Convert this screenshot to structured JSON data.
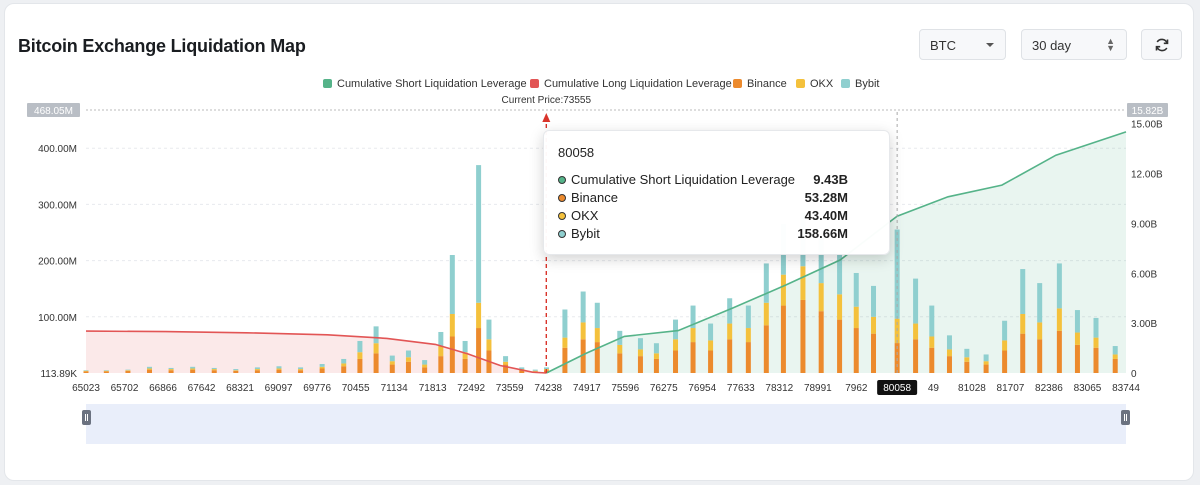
{
  "header": {
    "title": "Bitcoin Exchange Liquidation Map",
    "coin_select": "BTC",
    "range_select": "30 day"
  },
  "colors": {
    "short_cum": "#55b389",
    "long_cum": "#e25555",
    "binance": "#ec8a2d",
    "okx": "#f4c13c",
    "bybit": "#8fcfcf",
    "current_price_line": "#d9342b"
  },
  "tooltip": {
    "header": "80058",
    "rows": [
      {
        "name": "Cumulative Short Liquidation Leverage",
        "value": "9.43B"
      },
      {
        "name": "Binance",
        "value": "53.28M"
      },
      {
        "name": "OKX",
        "value": "43.40M"
      },
      {
        "name": "Bybit",
        "value": "158.66M"
      }
    ]
  },
  "chart_data": {
    "type": "bar",
    "legend": [
      "Cumulative Short Liquidation Leverage",
      "Cumulative Long Liquidation Leverage",
      "Binance",
      "OKX",
      "Bybit"
    ],
    "legend_position": "top-center",
    "current_price_label": "Current Price:73555",
    "current_price": 73555,
    "hover_x_label": "80058",
    "x_tick_labels": [
      "65023",
      "65702",
      "66866",
      "67642",
      "68321",
      "69097",
      "69776",
      "70455",
      "71134",
      "71813",
      "72492",
      "73559",
      "74238",
      "74917",
      "75596",
      "76275",
      "76954",
      "77633",
      "78312",
      "78991",
      "7962",
      "80058",
      "49",
      "81028",
      "81707",
      "82386",
      "83065",
      "83744"
    ],
    "y_left_ticks": [
      "113.89K",
      "100.00M",
      "200.00M",
      "300.00M",
      "400.00M"
    ],
    "y_left_max_label": "468.05M",
    "y_right_ticks": [
      "0",
      "3.00B",
      "6.00B",
      "9.00B",
      "12.00B",
      "15.00B"
    ],
    "y_right_max_label": "15.82B",
    "y_left_unit": "M",
    "y_right_unit": "B",
    "ylim_left": [
      0,
      468.05
    ],
    "ylim_right": [
      0,
      15.82
    ],
    "x_range": [
      65023,
      84300
    ],
    "grid": "horizontal-dashed",
    "long_cumulative_line": [
      {
        "x": 65023,
        "y": 2.52
      },
      {
        "x": 66500,
        "y": 2.49
      },
      {
        "x": 68000,
        "y": 2.42
      },
      {
        "x": 69500,
        "y": 2.3
      },
      {
        "x": 70600,
        "y": 2.08
      },
      {
        "x": 71500,
        "y": 1.72
      },
      {
        "x": 72100,
        "y": 1.15
      },
      {
        "x": 72700,
        "y": 0.45
      },
      {
        "x": 73300,
        "y": 0.05
      },
      {
        "x": 73555,
        "y": 0
      }
    ],
    "short_cumulative_line": [
      {
        "x": 73555,
        "y": 0
      },
      {
        "x": 74300,
        "y": 1.2
      },
      {
        "x": 75000,
        "y": 2.2
      },
      {
        "x": 76000,
        "y": 2.55
      },
      {
        "x": 77000,
        "y": 3.9
      },
      {
        "x": 78000,
        "y": 5.3
      },
      {
        "x": 79000,
        "y": 6.8
      },
      {
        "x": 80058,
        "y": 9.43
      },
      {
        "x": 81000,
        "y": 10.6
      },
      {
        "x": 82000,
        "y": 11.3
      },
      {
        "x": 83000,
        "y": 13.1
      },
      {
        "x": 84300,
        "y": 14.5
      }
    ],
    "stacked_bars": [
      {
        "x": 65023,
        "binance": 3,
        "okx": 1,
        "bybit": 1
      },
      {
        "x": 65400,
        "binance": 3,
        "okx": 1,
        "bybit": 1
      },
      {
        "x": 65800,
        "binance": 4,
        "okx": 1,
        "bybit": 1
      },
      {
        "x": 66200,
        "binance": 6,
        "okx": 2,
        "bybit": 3
      },
      {
        "x": 66600,
        "binance": 5,
        "okx": 2,
        "bybit": 2
      },
      {
        "x": 67000,
        "binance": 6,
        "okx": 2,
        "bybit": 3
      },
      {
        "x": 67400,
        "binance": 5,
        "okx": 2,
        "bybit": 2
      },
      {
        "x": 67800,
        "binance": 4,
        "okx": 1,
        "bybit": 2
      },
      {
        "x": 68200,
        "binance": 5,
        "okx": 2,
        "bybit": 3
      },
      {
        "x": 68600,
        "binance": 6,
        "okx": 2,
        "bybit": 4
      },
      {
        "x": 69000,
        "binance": 5,
        "okx": 2,
        "bybit": 3
      },
      {
        "x": 69400,
        "binance": 8,
        "okx": 3,
        "bybit": 5
      },
      {
        "x": 69800,
        "binance": 12,
        "okx": 5,
        "bybit": 8
      },
      {
        "x": 70100,
        "binance": 25,
        "okx": 12,
        "bybit": 20
      },
      {
        "x": 70400,
        "binance": 35,
        "okx": 18,
        "bybit": 30
      },
      {
        "x": 70700,
        "binance": 15,
        "okx": 6,
        "bybit": 10
      },
      {
        "x": 71000,
        "binance": 20,
        "okx": 8,
        "bybit": 12
      },
      {
        "x": 71300,
        "binance": 10,
        "okx": 5,
        "bybit": 8
      },
      {
        "x": 71600,
        "binance": 30,
        "okx": 18,
        "bybit": 25
      },
      {
        "x": 71813,
        "binance": 65,
        "okx": 40,
        "bybit": 105
      },
      {
        "x": 72050,
        "binance": 25,
        "okx": 12,
        "bybit": 20
      },
      {
        "x": 72300,
        "binance": 80,
        "okx": 45,
        "bybit": 245
      },
      {
        "x": 72492,
        "binance": 40,
        "okx": 20,
        "bybit": 35
      },
      {
        "x": 72800,
        "binance": 15,
        "okx": 5,
        "bybit": 10
      },
      {
        "x": 73100,
        "binance": 5,
        "okx": 2,
        "bybit": 3
      },
      {
        "x": 73350,
        "binance": 3,
        "okx": 1,
        "bybit": 2
      },
      {
        "x": 73559,
        "binance": 5,
        "okx": 2,
        "bybit": 3
      },
      {
        "x": 73900,
        "binance": 45,
        "okx": 18,
        "bybit": 50
      },
      {
        "x": 74238,
        "binance": 60,
        "okx": 30,
        "bybit": 55
      },
      {
        "x": 74500,
        "binance": 55,
        "okx": 25,
        "bybit": 45
      },
      {
        "x": 74917,
        "binance": 35,
        "okx": 15,
        "bybit": 25
      },
      {
        "x": 75300,
        "binance": 30,
        "okx": 12,
        "bybit": 20
      },
      {
        "x": 75596,
        "binance": 25,
        "okx": 10,
        "bybit": 18
      },
      {
        "x": 75950,
        "binance": 40,
        "okx": 20,
        "bybit": 35
      },
      {
        "x": 76275,
        "binance": 55,
        "okx": 25,
        "bybit": 40
      },
      {
        "x": 76600,
        "binance": 40,
        "okx": 18,
        "bybit": 30
      },
      {
        "x": 76954,
        "binance": 60,
        "okx": 28,
        "bybit": 45
      },
      {
        "x": 77300,
        "binance": 55,
        "okx": 25,
        "bybit": 40
      },
      {
        "x": 77633,
        "binance": 85,
        "okx": 40,
        "bybit": 70
      },
      {
        "x": 77950,
        "binance": 120,
        "okx": 55,
        "bybit": 90
      },
      {
        "x": 78312,
        "binance": 130,
        "okx": 60,
        "bybit": 95
      },
      {
        "x": 78650,
        "binance": 110,
        "okx": 50,
        "bybit": 80
      },
      {
        "x": 78991,
        "binance": 95,
        "okx": 45,
        "bybit": 70
      },
      {
        "x": 79300,
        "binance": 80,
        "okx": 38,
        "bybit": 60
      },
      {
        "x": 79620,
        "binance": 70,
        "okx": 30,
        "bybit": 55
      },
      {
        "x": 80058,
        "binance": 53.28,
        "okx": 43.4,
        "bybit": 158.66
      },
      {
        "x": 80400,
        "binance": 60,
        "okx": 28,
        "bybit": 80
      },
      {
        "x": 80700,
        "binance": 45,
        "okx": 20,
        "bybit": 55
      },
      {
        "x": 81028,
        "binance": 30,
        "okx": 12,
        "bybit": 25
      },
      {
        "x": 81350,
        "binance": 20,
        "okx": 8,
        "bybit": 15
      },
      {
        "x": 81707,
        "binance": 15,
        "okx": 6,
        "bybit": 12
      },
      {
        "x": 82050,
        "binance": 40,
        "okx": 18,
        "bybit": 35
      },
      {
        "x": 82386,
        "binance": 70,
        "okx": 35,
        "bybit": 80
      },
      {
        "x": 82700,
        "binance": 60,
        "okx": 30,
        "bybit": 70
      },
      {
        "x": 83065,
        "binance": 75,
        "okx": 40,
        "bybit": 80
      },
      {
        "x": 83400,
        "binance": 50,
        "okx": 22,
        "bybit": 40
      },
      {
        "x": 83744,
        "binance": 45,
        "okx": 18,
        "bybit": 35
      },
      {
        "x": 84100,
        "binance": 25,
        "okx": 8,
        "bybit": 15
      }
    ]
  }
}
